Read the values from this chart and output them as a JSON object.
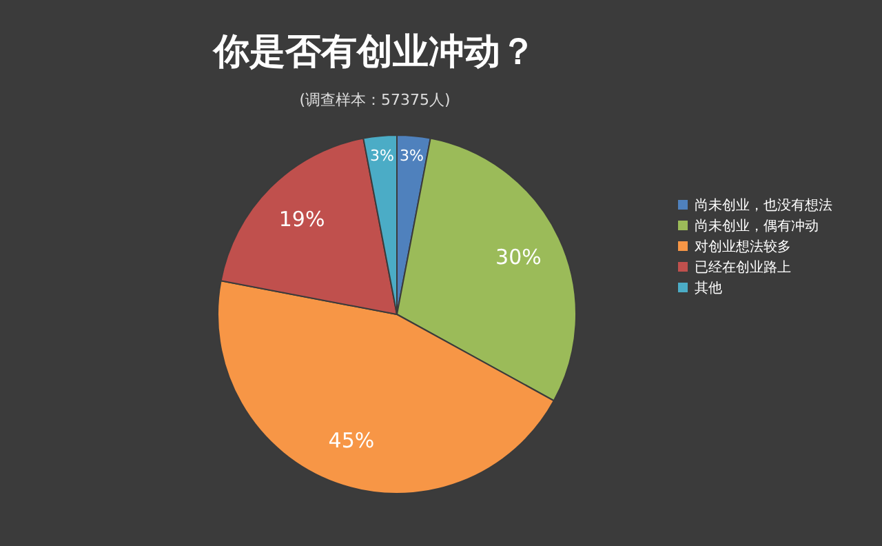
{
  "chart_data": {
    "type": "pie",
    "title": "你是否有创业冲动？",
    "subtitle": "(调查样本：57375人)",
    "categories": [
      "尚未创业，也没有想法",
      "尚未创业，偶有冲动",
      "对创业想法较多",
      "已经在创业路上",
      "其他"
    ],
    "values": [
      3,
      30,
      45,
      19,
      3
    ],
    "colors": [
      "#4f81bd",
      "#9bbb59",
      "#f79646",
      "#c0504d",
      "#4bacc6"
    ],
    "value_labels": [
      "3%",
      "30%",
      "45%",
      "19%",
      "3%"
    ],
    "legend": "right"
  }
}
